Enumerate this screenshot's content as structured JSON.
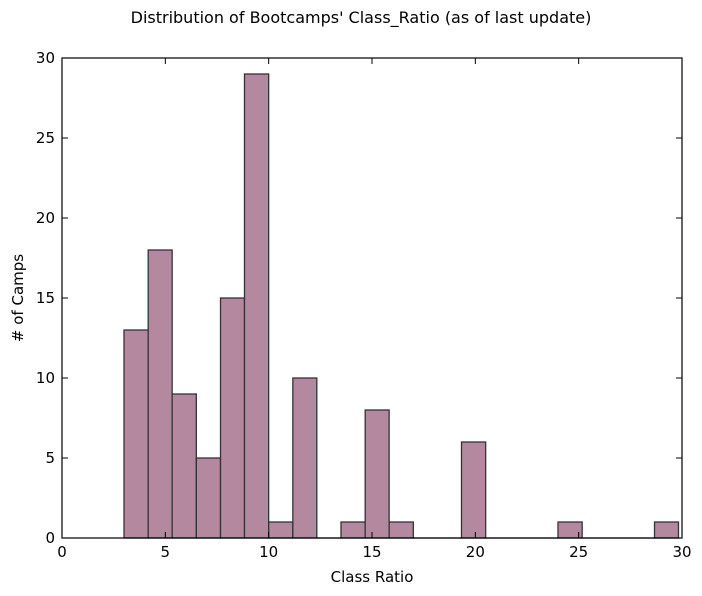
{
  "chart_data": {
    "type": "bar",
    "title": "Distribution of Bootcamps' Class_Ratio (as of last update)",
    "xlabel": "Class Ratio",
    "ylabel": "# of Camps",
    "xlim": [
      0,
      30
    ],
    "ylim": [
      0,
      30
    ],
    "xticks": [
      0,
      5,
      10,
      15,
      20,
      25,
      30
    ],
    "yticks": [
      0,
      5,
      10,
      15,
      20,
      25,
      30
    ],
    "bar_color": "#b4889e",
    "edge_color": "#333333",
    "grid": false,
    "legend": "none",
    "bins": [
      {
        "x0": 3.0,
        "x1": 4.17,
        "value": 13
      },
      {
        "x0": 4.17,
        "x1": 5.33,
        "value": 18
      },
      {
        "x0": 5.33,
        "x1": 6.5,
        "value": 9
      },
      {
        "x0": 6.5,
        "x1": 7.67,
        "value": 5
      },
      {
        "x0": 7.67,
        "x1": 8.83,
        "value": 15
      },
      {
        "x0": 8.83,
        "x1": 10.0,
        "value": 29
      },
      {
        "x0": 10.0,
        "x1": 11.17,
        "value": 1
      },
      {
        "x0": 11.17,
        "x1": 12.33,
        "value": 10
      },
      {
        "x0": 12.33,
        "x1": 13.5,
        "value": 0
      },
      {
        "x0": 13.5,
        "x1": 14.67,
        "value": 1
      },
      {
        "x0": 14.67,
        "x1": 15.83,
        "value": 8
      },
      {
        "x0": 15.83,
        "x1": 17.0,
        "value": 1
      },
      {
        "x0": 17.0,
        "x1": 18.17,
        "value": 0
      },
      {
        "x0": 18.17,
        "x1": 19.33,
        "value": 0
      },
      {
        "x0": 19.33,
        "x1": 20.5,
        "value": 6
      },
      {
        "x0": 20.5,
        "x1": 21.67,
        "value": 0
      },
      {
        "x0": 21.67,
        "x1": 22.83,
        "value": 0
      },
      {
        "x0": 22.83,
        "x1": 24.0,
        "value": 0
      },
      {
        "x0": 24.0,
        "x1": 25.17,
        "value": 1
      },
      {
        "x0": 25.17,
        "x1": 26.33,
        "value": 0
      },
      {
        "x0": 26.33,
        "x1": 27.5,
        "value": 0
      },
      {
        "x0": 27.5,
        "x1": 28.67,
        "value": 0
      },
      {
        "x0": 28.67,
        "x1": 29.83,
        "value": 1
      }
    ]
  }
}
